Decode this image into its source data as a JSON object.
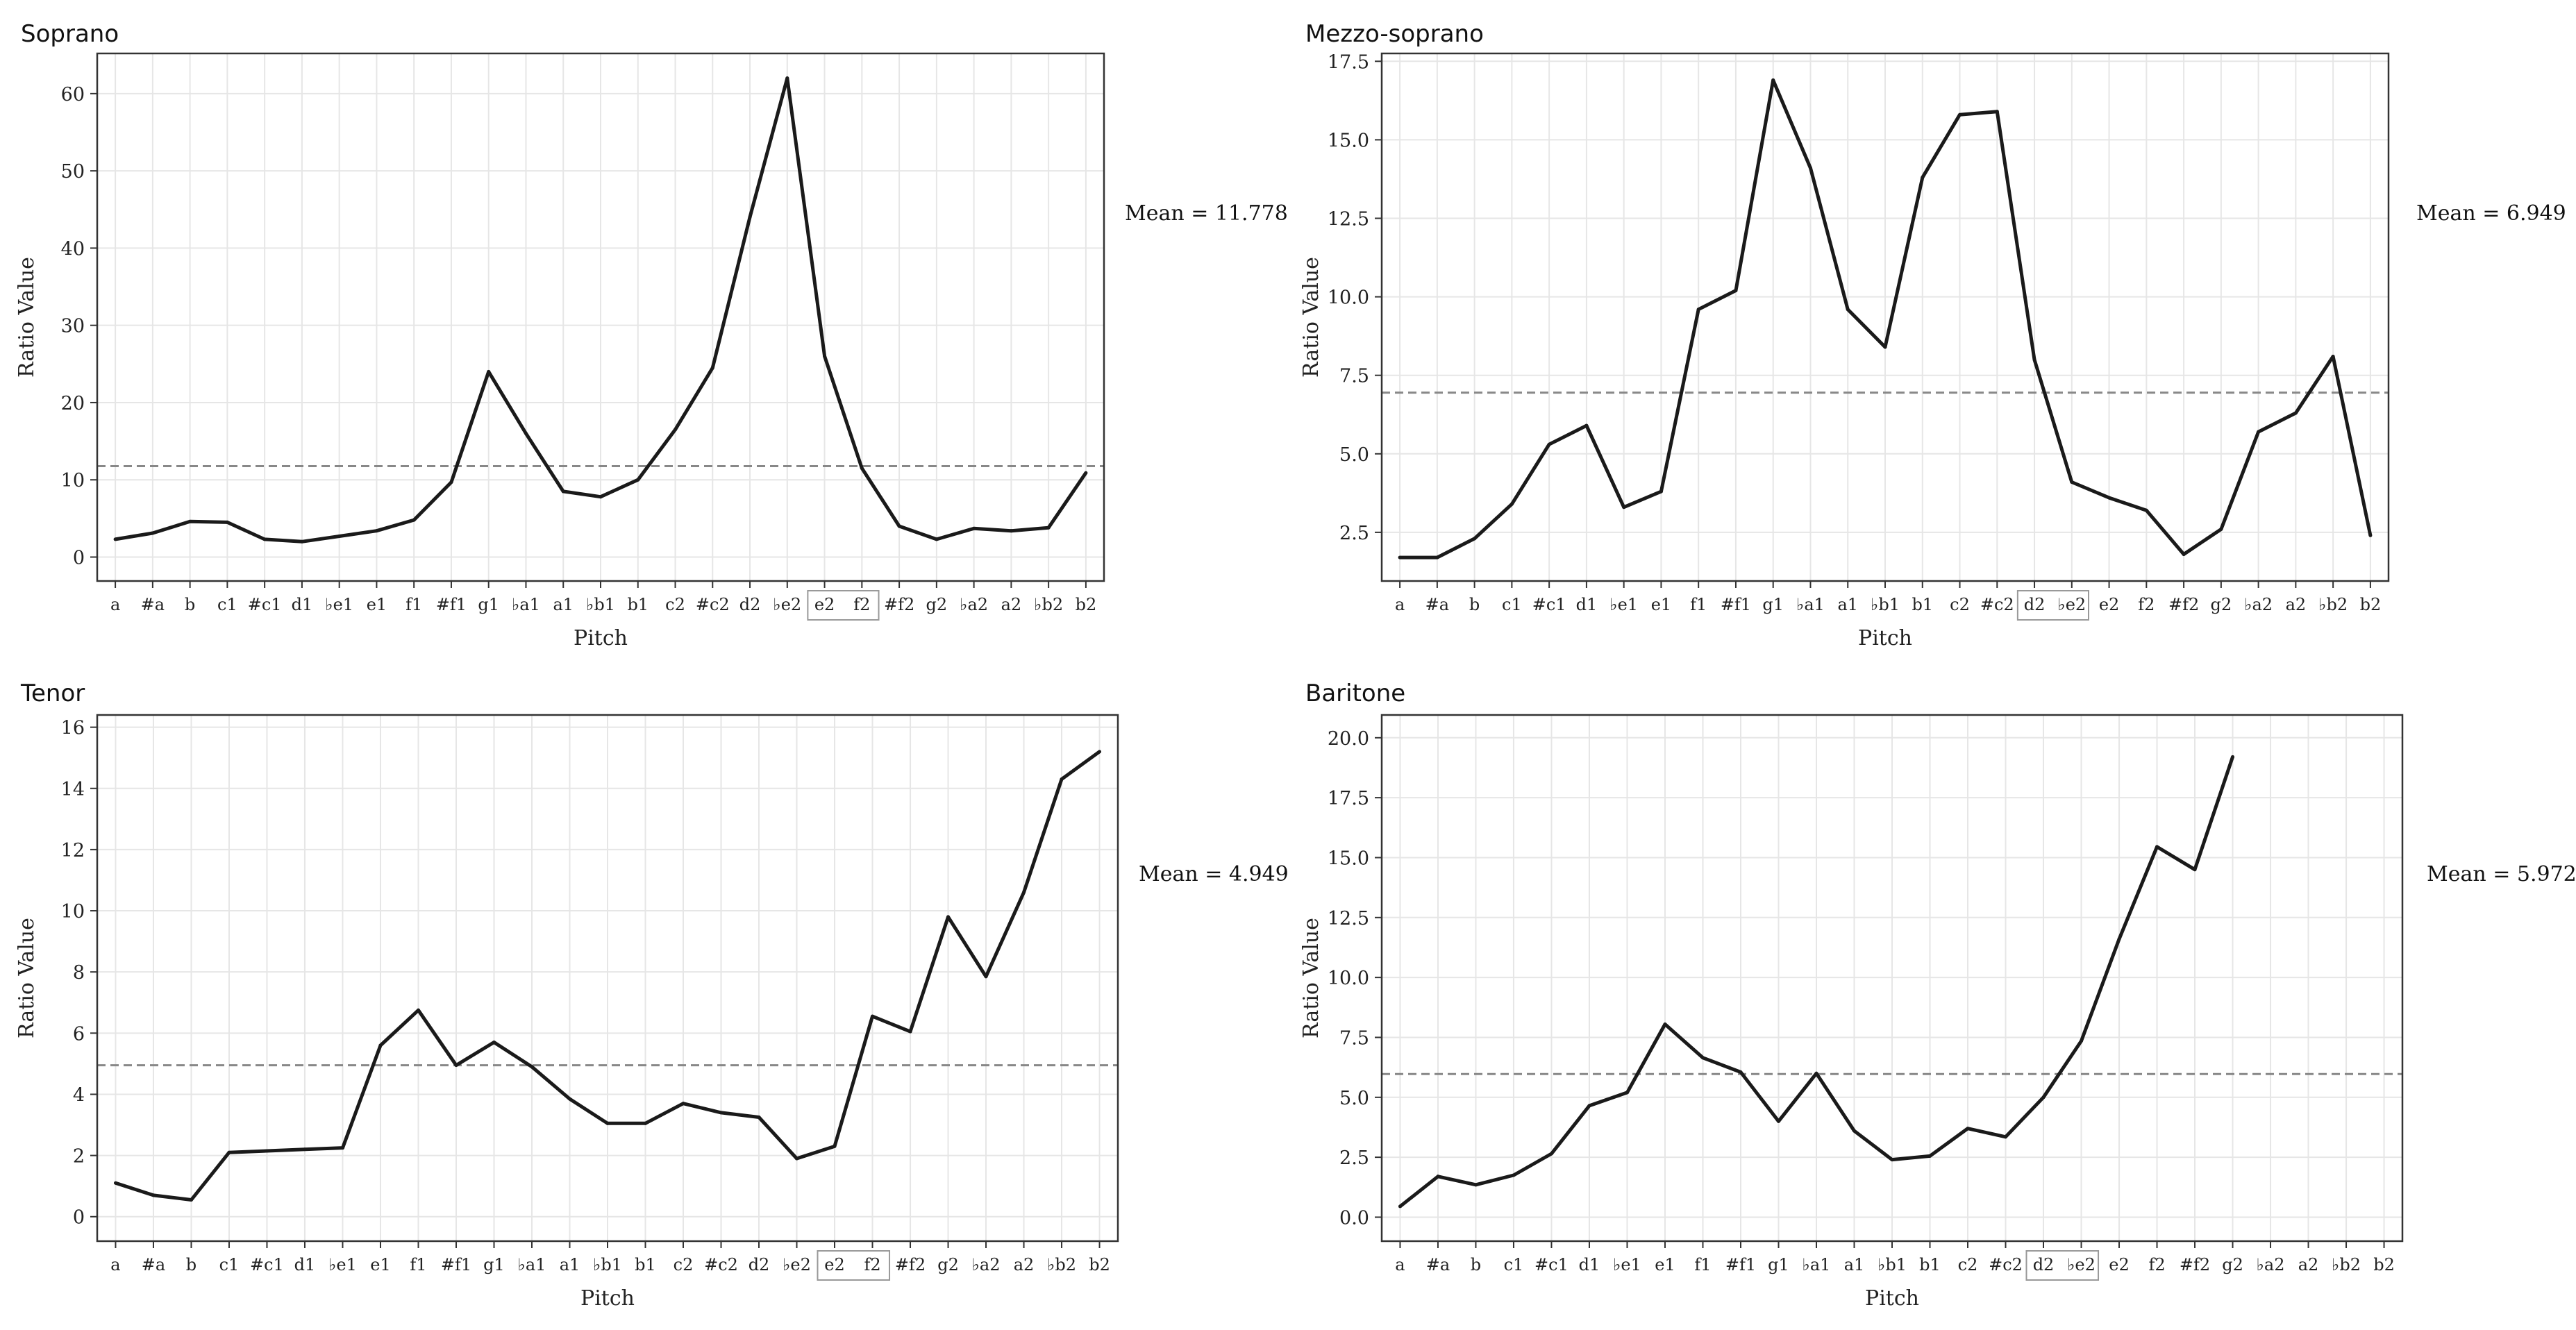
{
  "chart_data": [
    {
      "type": "line",
      "title": "Soprano",
      "xlabel": "Pitch",
      "ylabel": "Ratio Value",
      "ylim": [
        -3.1,
        65.2
      ],
      "yticks": [
        0,
        10,
        20,
        30,
        40,
        50,
        60
      ],
      "ytick_labels": [
        "0",
        "10",
        "20",
        "30",
        "40",
        "50",
        "60"
      ],
      "categories": [
        "a",
        "#a",
        "b",
        "c1",
        "#c1",
        "d1",
        "♭e1",
        "e1",
        "f1",
        "#f1",
        "g1",
        "♭a1",
        "a1",
        "♭b1",
        "b1",
        "c2",
        "#c2",
        "d2",
        "♭e2",
        "e2",
        "f2",
        "#f2",
        "g2",
        "♭a2",
        "a2",
        "♭b2",
        "b2"
      ],
      "boxed_ticks": [
        "e2",
        "f2"
      ],
      "grid": true,
      "values": [
        2.3,
        3.1,
        4.6,
        4.5,
        2.3,
        2.0,
        2.7,
        3.4,
        4.8,
        9.7,
        24.0,
        16.0,
        8.5,
        7.8,
        10.0,
        16.5,
        24.5,
        44.0,
        62.0,
        26.0,
        11.5,
        4.0,
        2.3,
        3.7,
        3.4,
        3.8,
        10.9
      ],
      "mean": 11.778,
      "mean_label": "Mean = 11.778"
    },
    {
      "type": "line",
      "title": "Mezzo-soprano",
      "xlabel": "Pitch",
      "ylabel": "Ratio Value",
      "ylim": [
        0.95,
        17.75
      ],
      "yticks": [
        2.5,
        5.0,
        7.5,
        10.0,
        12.5,
        15.0,
        17.5
      ],
      "ytick_labels": [
        "2.5",
        "5.0",
        "7.5",
        "10.0",
        "12.5",
        "15.0",
        "17.5"
      ],
      "categories": [
        "a",
        "#a",
        "b",
        "c1",
        "#c1",
        "d1",
        "♭e1",
        "e1",
        "f1",
        "#f1",
        "g1",
        "♭a1",
        "a1",
        "♭b1",
        "b1",
        "c2",
        "#c2",
        "d2",
        "♭e2",
        "e2",
        "f2",
        "#f2",
        "g2",
        "♭a2",
        "a2",
        "♭b2",
        "b2"
      ],
      "boxed_ticks": [
        "d2",
        "♭e2"
      ],
      "grid": true,
      "values": [
        1.7,
        1.7,
        2.3,
        3.4,
        5.3,
        5.9,
        3.3,
        3.8,
        9.6,
        10.2,
        16.9,
        14.1,
        9.6,
        8.4,
        13.8,
        15.8,
        15.9,
        8.0,
        4.1,
        3.6,
        3.2,
        1.8,
        2.6,
        5.7,
        6.3,
        8.1,
        2.4
      ],
      "mean": 6.949,
      "mean_label": "Mean = 6.949"
    },
    {
      "type": "line",
      "title": "Tenor",
      "xlabel": "Pitch",
      "ylabel": "Ratio Value",
      "ylim": [
        -0.8,
        16.4
      ],
      "yticks": [
        0,
        2,
        4,
        6,
        8,
        10,
        12,
        14,
        16
      ],
      "ytick_labels": [
        "0",
        "2",
        "4",
        "6",
        "8",
        "10",
        "12",
        "14",
        "16"
      ],
      "categories": [
        "a",
        "#a",
        "b",
        "c1",
        "#c1",
        "d1",
        "♭e1",
        "e1",
        "f1",
        "#f1",
        "g1",
        "♭a1",
        "a1",
        "♭b1",
        "b1",
        "c2",
        "#c2",
        "d2",
        "♭e2",
        "e2",
        "f2",
        "#f2",
        "g2",
        "♭a2",
        "a2",
        "♭b2",
        "b2"
      ],
      "boxed_ticks": [
        "e2",
        "f2"
      ],
      "grid": true,
      "values": [
        1.1,
        0.7,
        0.55,
        2.1,
        2.15,
        2.2,
        2.25,
        5.6,
        6.75,
        4.95,
        5.7,
        4.9,
        3.85,
        3.05,
        3.05,
        3.7,
        3.4,
        3.25,
        1.9,
        2.3,
        6.55,
        6.05,
        9.8,
        7.85,
        10.6,
        14.3,
        15.2
      ],
      "mean": 4.949,
      "mean_label": "Mean = 4.949"
    },
    {
      "type": "line",
      "title": "Baritone",
      "xlabel": "Pitch",
      "ylabel": "Ratio Value",
      "ylim": [
        -1.0,
        20.95
      ],
      "yticks": [
        0.0,
        2.5,
        5.0,
        7.5,
        10.0,
        12.5,
        15.0,
        17.5,
        20.0
      ],
      "ytick_labels": [
        "0.0",
        "2.5",
        "5.0",
        "7.5",
        "10.0",
        "12.5",
        "15.0",
        "17.5",
        "20.0"
      ],
      "categories": [
        "a",
        "#a",
        "b",
        "c1",
        "#c1",
        "d1",
        "♭e1",
        "e1",
        "f1",
        "#f1",
        "g1",
        "♭a1",
        "a1",
        "♭b1",
        "b1",
        "c2",
        "#c2",
        "d2",
        "♭e2",
        "e2",
        "f2",
        "#f2",
        "g2",
        "♭a2",
        "a2",
        "♭b2",
        "b2"
      ],
      "boxed_ticks": [
        "d2",
        "♭e2"
      ],
      "grid": true,
      "values": [
        0.45,
        1.7,
        1.35,
        1.75,
        2.65,
        4.65,
        5.2,
        8.05,
        6.65,
        6.05,
        4.0,
        6.0,
        3.6,
        2.4,
        2.55,
        3.7,
        3.35,
        5.0,
        7.35,
        11.6,
        15.45,
        14.5,
        19.2,
        null,
        null,
        null,
        null
      ],
      "mean": 5.972,
      "mean_label": "Mean = 5.972"
    }
  ]
}
